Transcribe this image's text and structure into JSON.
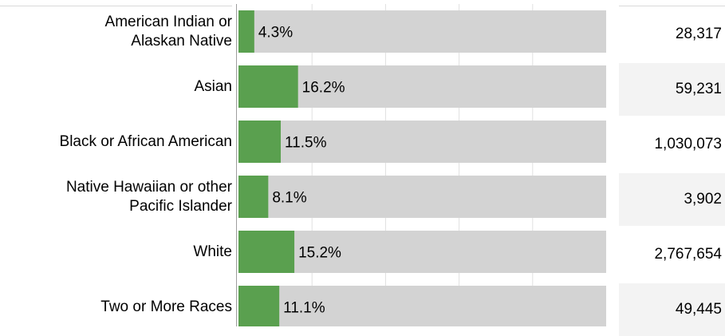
{
  "colors": {
    "bar_fill": "#5aa04f",
    "bar_track": "#d3d3d3",
    "gridline": "#e0e0e0",
    "axis_line": "#9e9e9e"
  },
  "chart_data": {
    "type": "bar",
    "orientation": "horizontal",
    "categories": [
      "American Indian or\nAlaskan Native",
      "Asian",
      "Black or African American",
      "Native Hawaiian or other\nPacific Islander",
      "White",
      "Two or More Races"
    ],
    "values": [
      4.3,
      16.2,
      11.5,
      8.1,
      15.2,
      11.1
    ],
    "data_labels": [
      "4.3%",
      "16.2%",
      "11.5%",
      "8.1%",
      "15.2%",
      "11.1%"
    ],
    "table_values": [
      "28,317",
      "59,231",
      "1,030,073",
      "3,902",
      "2,767,654",
      "49,445"
    ],
    "xlim": [
      0,
      100
    ],
    "grid": true,
    "legend": "none"
  }
}
